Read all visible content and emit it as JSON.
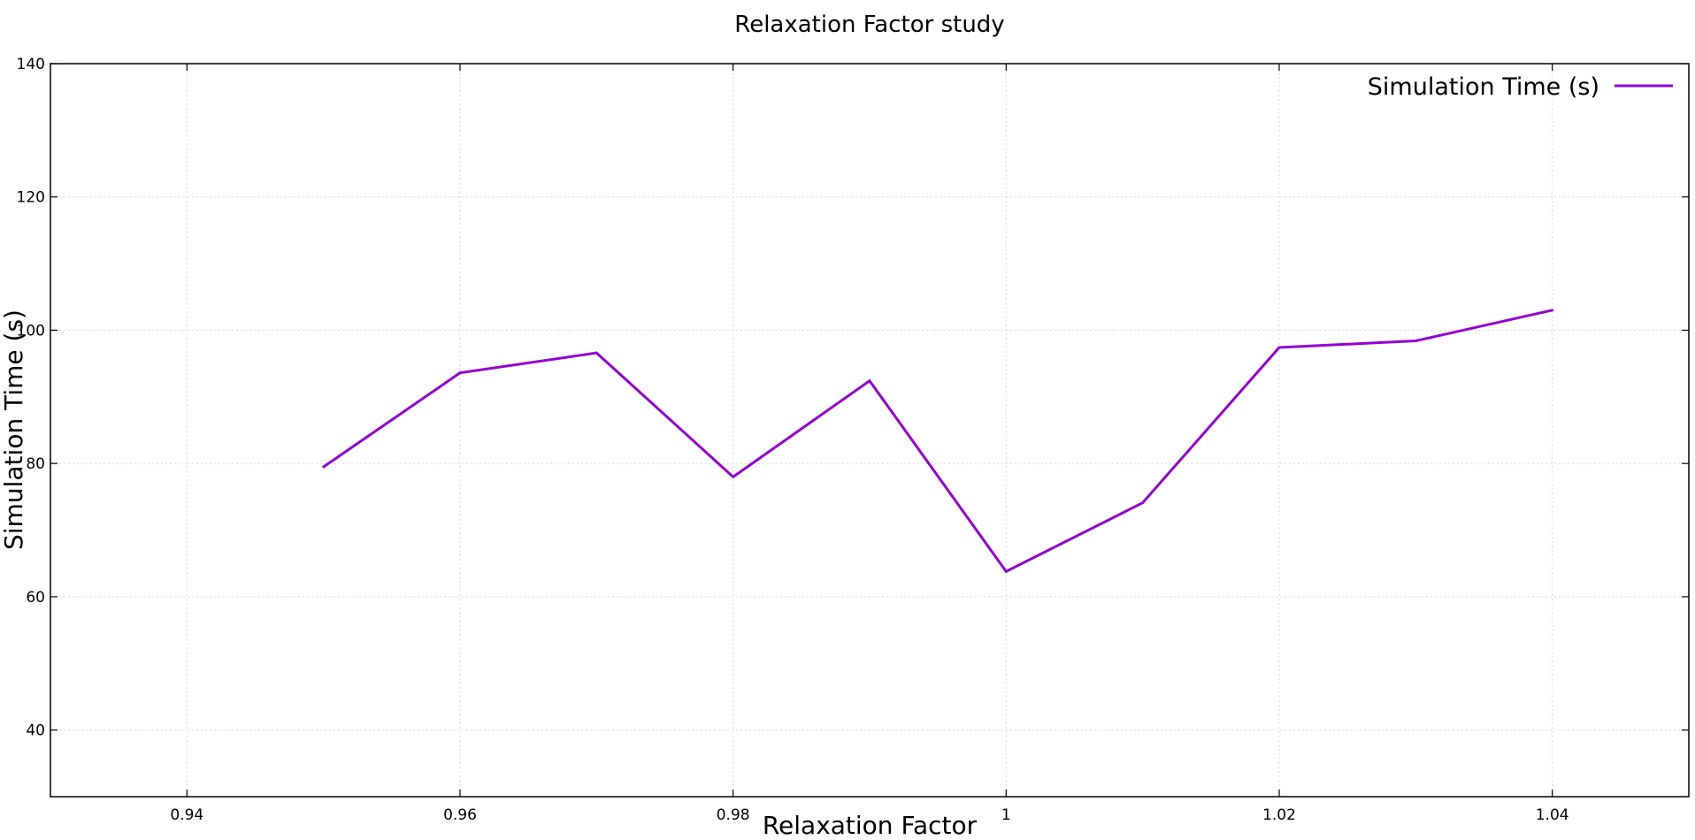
{
  "chart_data": {
    "type": "line",
    "title": "Relaxation Factor study",
    "xlabel": "Relaxation Factor",
    "ylabel": "Simulation Time (s)",
    "xlim": [
      0.93,
      1.05
    ],
    "ylim": [
      30,
      140
    ],
    "xticks": [
      0.94,
      0.96,
      0.98,
      1.0,
      1.02,
      1.04
    ],
    "xtick_labels": [
      "0.94",
      "0.96",
      "0.98",
      "1",
      "1.02",
      "1.04"
    ],
    "yticks": [
      40,
      60,
      80,
      100,
      120,
      140
    ],
    "ytick_labels": [
      "40",
      "60",
      "80",
      "100",
      "120",
      "140"
    ],
    "grid": true,
    "legend_position": "top-right",
    "series": [
      {
        "name": "Simulation Time (s)",
        "color": "#9400d3",
        "x": [
          0.95,
          0.96,
          0.97,
          0.98,
          0.99,
          1.0,
          1.01,
          1.02,
          1.03,
          1.04
        ],
        "y": [
          79.5,
          93.6,
          96.6,
          78.0,
          92.4,
          63.8,
          74.1,
          97.4,
          98.4,
          103.0
        ]
      }
    ]
  }
}
